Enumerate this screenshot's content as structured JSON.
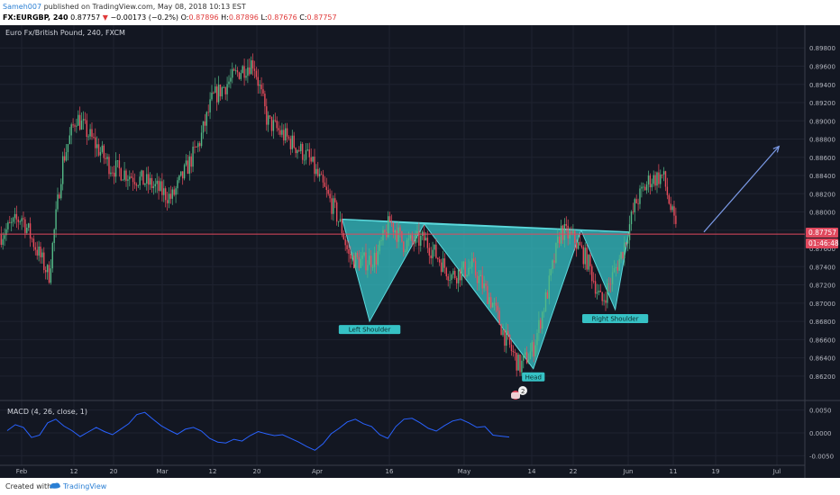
{
  "header": {
    "user": "Sameh007",
    "published": "published on TradingView.com, May 08, 2018 10:13 EST",
    "symbol": "FX:EURGBP, 240",
    "last": "0.87757",
    "change": "−0.00173 (−0.2%)",
    "open_label": "O:",
    "open": "0.87896",
    "high_label": "H:",
    "high": "0.87896",
    "low_label": "L:",
    "low": "0.87676",
    "close_label": "C:",
    "close": "0.87757"
  },
  "pane_title": "Euro Fx/British Pound, 240, FXCM",
  "macd_title": "MACD (4, 26, close, 1)",
  "price_badge": "0.87757",
  "time_badge": "01:46:48",
  "note_count": "2",
  "footer": {
    "created": "Created with",
    "brand": "TradingView"
  },
  "colors": {
    "bg": "#131722",
    "up": "#53b987",
    "down": "#eb4d5c",
    "pattern_fill": "#36c2c5",
    "pattern_line": "#5bd9dc",
    "arrow": "#7c9be8",
    "macd": "#2962ff",
    "last_line": "#e0495e"
  },
  "chart_data": [
    {
      "type": "candlestick",
      "title": "Euro Fx/British Pound, 240, FXCM",
      "ylim": [
        0.8607,
        0.8999
      ],
      "yticks": [
        "0.89800",
        "0.89600",
        "0.89400",
        "0.89200",
        "0.89000",
        "0.88800",
        "0.88600",
        "0.88400",
        "0.88200",
        "0.88000",
        "0.87800",
        "0.87600",
        "0.87400",
        "0.87200",
        "0.87000",
        "0.86800",
        "0.86600",
        "0.86400",
        "0.86200"
      ],
      "xticks": [
        "Feb",
        "12",
        "20",
        "Mar",
        "12",
        "20",
        "Apr",
        "16",
        "May",
        "14",
        "22",
        "Jun",
        "11",
        "19",
        "Jul"
      ],
      "last_price": 0.87757,
      "swings": [
        {
          "date": "Jan 29",
          "price": 0.8775
        },
        {
          "date": "Feb 01",
          "price": 0.8795
        },
        {
          "date": "Feb 05",
          "price": 0.873
        },
        {
          "date": "Feb 07",
          "price": 0.8855
        },
        {
          "date": "Feb 09",
          "price": 0.8905
        },
        {
          "date": "Feb 14",
          "price": 0.885
        },
        {
          "date": "Feb 20",
          "price": 0.883
        },
        {
          "date": "Feb 23",
          "price": 0.8815
        },
        {
          "date": "Feb 27",
          "price": 0.8875
        },
        {
          "date": "Mar 01",
          "price": 0.8925
        },
        {
          "date": "Mar 05",
          "price": 0.8955
        },
        {
          "date": "Mar 07",
          "price": 0.8965
        },
        {
          "date": "Mar 09",
          "price": 0.89
        },
        {
          "date": "Mar 12",
          "price": 0.888
        },
        {
          "date": "Mar 15",
          "price": 0.886
        },
        {
          "date": "Mar 19",
          "price": 0.88
        },
        {
          "date": "Mar 20",
          "price": 0.878
        },
        {
          "date": "Mar 21",
          "price": 0.875
        },
        {
          "date": "Mar 23",
          "price": 0.8745
        },
        {
          "date": "Mar 25",
          "price": 0.875
        },
        {
          "date": "Mar 27",
          "price": 0.879
        },
        {
          "date": "Mar 29",
          "price": 0.8765
        },
        {
          "date": "Apr 01",
          "price": 0.877
        },
        {
          "date": "Apr 05",
          "price": 0.873
        },
        {
          "date": "Apr 08",
          "price": 0.874
        },
        {
          "date": "Apr 11",
          "price": 0.87
        },
        {
          "date": "Apr 13",
          "price": 0.866
        },
        {
          "date": "Apr 15",
          "price": 0.863
        },
        {
          "date": "Apr 17",
          "price": 0.865
        },
        {
          "date": "Apr 19",
          "price": 0.871
        },
        {
          "date": "Apr 21",
          "price": 0.878
        },
        {
          "date": "Apr 23",
          "price": 0.877
        },
        {
          "date": "Apr 25",
          "price": 0.8745
        },
        {
          "date": "Apr 27",
          "price": 0.87
        },
        {
          "date": "Apr 30",
          "price": 0.8755
        },
        {
          "date": "May 02",
          "price": 0.881
        },
        {
          "date": "May 04",
          "price": 0.8835
        },
        {
          "date": "May 06",
          "price": 0.884
        },
        {
          "date": "May 08",
          "price": 0.8776
        }
      ],
      "annotations": [
        {
          "label": "Left Shoulder",
          "date": "Mar 24",
          "price": 0.8678
        },
        {
          "label": "Head",
          "date": "Apr 17",
          "price": 0.8626
        },
        {
          "label": "Right Shoulder",
          "date": "Apr 29",
          "price": 0.869
        }
      ],
      "pattern_points": [
        {
          "date": "Mar 20",
          "price": 0.8792
        },
        {
          "date": "Mar 24",
          "price": 0.868
        },
        {
          "date": "Apr 01",
          "price": 0.8787
        },
        {
          "date": "Apr 17",
          "price": 0.8628
        },
        {
          "date": "Apr 24",
          "price": 0.878
        },
        {
          "date": "Apr 29",
          "price": 0.8693
        },
        {
          "date": "May 01",
          "price": 0.8778
        }
      ],
      "projection": [
        {
          "date": "May 12",
          "price": 0.8778
        },
        {
          "date": "May 23",
          "price": 0.8872
        }
      ]
    },
    {
      "type": "line",
      "title": "MACD (4, 26, close, 1)",
      "ylim": [
        -0.0065,
        0.0065
      ],
      "yticks": [
        "0.0050",
        "0.0000",
        "-0.0050"
      ],
      "series": [
        {
          "values": [
            0.0005,
            0.0018,
            0.0012,
            -0.001,
            -0.0005,
            0.0022,
            0.003,
            0.0015,
            0.0005,
            -0.0008,
            0.0002,
            0.0012,
            0.0003,
            -0.0004,
            0.0008,
            0.002,
            0.004,
            0.0045,
            0.003,
            0.0016,
            0.0006,
            -0.0003,
            0.0008,
            0.0012,
            0.0004,
            -0.0012,
            -0.002,
            -0.0022,
            -0.0014,
            -0.0018,
            -0.0006,
            0.0003,
            -0.0002,
            -0.0006,
            -0.0004,
            -0.0012,
            -0.002,
            -0.003,
            -0.0038,
            -0.0024,
            -0.0002,
            0.001,
            0.0024,
            0.003,
            0.002,
            0.0014,
            -0.0004,
            -0.0012,
            0.0014,
            0.003,
            0.0032,
            0.0022,
            0.001,
            0.0004,
            0.0016,
            0.0026,
            0.003,
            0.0022,
            0.0012,
            0.0014,
            -0.0005,
            -0.0007,
            -0.0009
          ]
        }
      ]
    }
  ]
}
